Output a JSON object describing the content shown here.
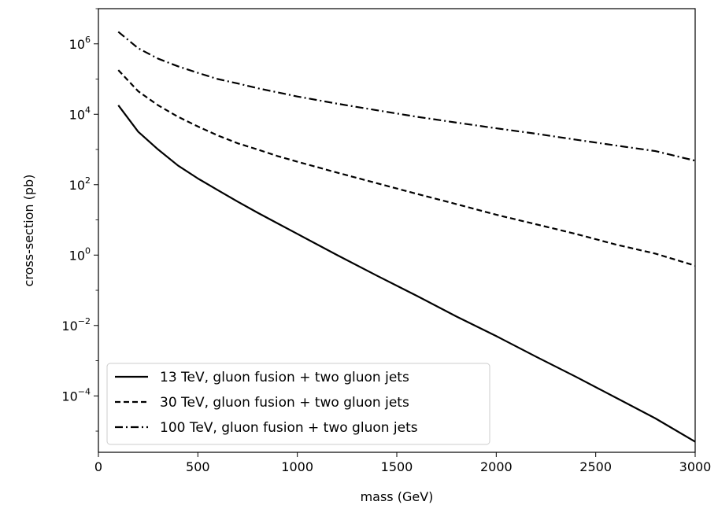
{
  "chart_data": {
    "type": "line",
    "title": "",
    "xlabel": "mass (GeV)",
    "ylabel": "cross-section (pb)",
    "xlim": [
      0,
      3000
    ],
    "ylim": [
      2.5e-06,
      10000000
    ],
    "yscale": "log",
    "grid": false,
    "legend_position": "lower-left",
    "x_ticks": [
      {
        "value": 0,
        "label": "0"
      },
      {
        "value": 500,
        "label": "500"
      },
      {
        "value": 1000,
        "label": "1000"
      },
      {
        "value": 1500,
        "label": "1500"
      },
      {
        "value": 2000,
        "label": "2000"
      },
      {
        "value": 2500,
        "label": "2500"
      },
      {
        "value": 3000,
        "label": "3000"
      }
    ],
    "y_ticks": [
      {
        "value": 1000000,
        "base": "10",
        "exp": "6"
      },
      {
        "value": 10000,
        "base": "10",
        "exp": "4"
      },
      {
        "value": 100,
        "base": "10",
        "exp": "2"
      },
      {
        "value": 1,
        "base": "10",
        "exp": "0"
      },
      {
        "value": 0.01,
        "base": "10",
        "exp": "−2"
      },
      {
        "value": 0.0001,
        "base": "10",
        "exp": "−4"
      }
    ],
    "x": [
      100,
      200,
      300,
      400,
      500,
      600,
      700,
      800,
      900,
      1000,
      1200,
      1400,
      1600,
      1800,
      2000,
      2200,
      2400,
      2600,
      2800,
      3000
    ],
    "series": [
      {
        "name": "13 TeV, gluon fusion + two gluon jets",
        "dash": "solid",
        "color": "#000000",
        "values": [
          18000,
          3200,
          1000,
          350,
          150,
          70,
          33,
          16,
          8,
          4,
          1.0,
          0.26,
          0.07,
          0.018,
          0.005,
          0.0013,
          0.00035,
          9e-05,
          2.3e-05,
          5e-06
        ]
      },
      {
        "name": "30 TeV, gluon fusion + two gluon jets",
        "dash": "dashed",
        "color": "#000000",
        "values": [
          180000,
          45000,
          18000,
          8500,
          4500,
          2500,
          1500,
          1000,
          650,
          450,
          220,
          110,
          55,
          28,
          14,
          7.5,
          4,
          2,
          1.1,
          0.5
        ]
      },
      {
        "name": "100 TeV, gluon fusion + two gluon jets",
        "dash": "dashdot",
        "color": "#000000",
        "values": [
          2200000,
          750000,
          380000,
          230000,
          150000,
          100000,
          75000,
          55000,
          42000,
          32000,
          20000,
          13000,
          8500,
          5800,
          4000,
          2800,
          1900,
          1300,
          900,
          480
        ]
      }
    ]
  }
}
